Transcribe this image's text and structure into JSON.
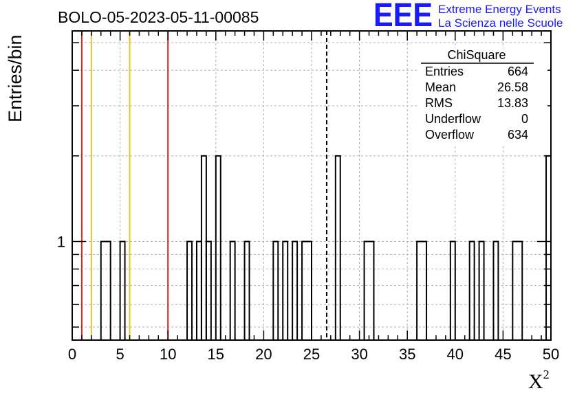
{
  "chart_data": {
    "type": "histogram",
    "title": "BOLO-05-2023-05-11-00085",
    "xlabel": "X",
    "xlabel_sup": "2",
    "ylabel": "Entries/bin",
    "xlim": [
      0,
      50
    ],
    "ylim": [
      0.45,
      5.5
    ],
    "yscale": "log",
    "grid": true,
    "x_ticks": [
      0,
      5,
      10,
      15,
      20,
      25,
      30,
      35,
      40,
      45,
      50
    ],
    "y_ticks": [
      1
    ],
    "bin_width": 0.5,
    "bins": [
      {
        "x0": 3.0,
        "x1": 4.0,
        "count": 1
      },
      {
        "x0": 5.0,
        "x1": 5.5,
        "count": 1
      },
      {
        "x0": 12.0,
        "x1": 12.5,
        "count": 1
      },
      {
        "x0": 13.0,
        "x1": 13.5,
        "count": 1
      },
      {
        "x0": 13.5,
        "x1": 14.0,
        "count": 2
      },
      {
        "x0": 14.0,
        "x1": 14.5,
        "count": 1
      },
      {
        "x0": 15.0,
        "x1": 15.5,
        "count": 2
      },
      {
        "x0": 16.5,
        "x1": 17.0,
        "count": 1
      },
      {
        "x0": 18.0,
        "x1": 18.5,
        "count": 1
      },
      {
        "x0": 21.0,
        "x1": 21.5,
        "count": 1
      },
      {
        "x0": 22.0,
        "x1": 22.5,
        "count": 1
      },
      {
        "x0": 23.0,
        "x1": 23.5,
        "count": 1
      },
      {
        "x0": 24.0,
        "x1": 25.0,
        "count": 1
      },
      {
        "x0": 27.5,
        "x1": 28.0,
        "count": 2
      },
      {
        "x0": 30.5,
        "x1": 31.5,
        "count": 1
      },
      {
        "x0": 36.0,
        "x1": 37.0,
        "count": 1
      },
      {
        "x0": 39.5,
        "x1": 40.0,
        "count": 1
      },
      {
        "x0": 41.5,
        "x1": 42.0,
        "count": 1
      },
      {
        "x0": 42.5,
        "x1": 43.0,
        "count": 1
      },
      {
        "x0": 44.0,
        "x1": 44.5,
        "count": 1
      },
      {
        "x0": 46.0,
        "x1": 47.0,
        "count": 1
      },
      {
        "x0": 49.5,
        "x1": 50.0,
        "count": 2
      }
    ],
    "vertical_lines": [
      {
        "x": 1.0,
        "color": "#dd2222",
        "style": "solid"
      },
      {
        "x": 2.0,
        "color": "#f0c020",
        "style": "solid"
      },
      {
        "x": 6.0,
        "color": "#f0c020",
        "style": "solid"
      },
      {
        "x": 10.0,
        "color": "#dd2222",
        "style": "solid"
      },
      {
        "x": 26.58,
        "color": "#000000",
        "style": "dashed"
      }
    ],
    "stats_box": {
      "name": "ChiSquare",
      "rows": [
        {
          "label": "Entries",
          "value": "664"
        },
        {
          "label": "Mean",
          "value": "26.58"
        },
        {
          "label": "RMS",
          "value": "13.83"
        },
        {
          "label": "Underflow",
          "value": "0"
        },
        {
          "label": "Overflow",
          "value": "634"
        }
      ]
    }
  },
  "logo": {
    "mark": "EEE",
    "line1": "Extreme Energy Events",
    "line2": "La Scienza nelle Scuole",
    "color": "#1a1aff"
  }
}
